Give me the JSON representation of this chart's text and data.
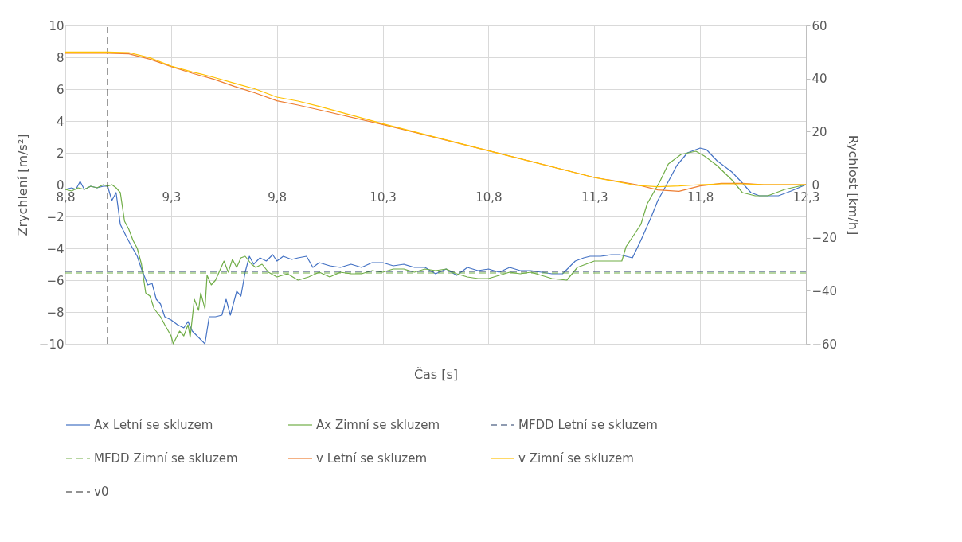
{
  "chart_data": {
    "type": "line",
    "xlabel": "Čas [s]",
    "ylabel": "Zrychlení [m/s²]",
    "y2label": "Rychlost [km/h]",
    "xlim": [
      8.8,
      12.3
    ],
    "xticks": [
      {
        "value": 8.8,
        "label": "8,8"
      },
      {
        "value": 9.3,
        "label": "9,3"
      },
      {
        "value": 9.8,
        "label": "9,8"
      },
      {
        "value": 10.3,
        "label": "10,3"
      },
      {
        "value": 10.8,
        "label": "10,8"
      },
      {
        "value": 11.3,
        "label": "11,3"
      },
      {
        "value": 11.8,
        "label": "11,8"
      },
      {
        "value": 12.3,
        "label": "12,3"
      }
    ],
    "ylim": [
      -10,
      10
    ],
    "yticks": [
      -10,
      -8,
      -6,
      -4,
      -2,
      0,
      2,
      4,
      6,
      8,
      10
    ],
    "y2lim": [
      -60,
      60
    ],
    "y2ticks": [
      -60,
      -40,
      -20,
      0,
      20,
      40,
      60
    ],
    "grid": true,
    "legend": "bottom",
    "series": [
      {
        "name": "Ax Letní se skluzem",
        "color": "#4472c4",
        "line_style": "solid",
        "x": [
          8.8,
          8.83,
          8.85,
          8.87,
          8.89,
          8.92,
          8.95,
          8.98,
          9.0,
          9.02,
          9.04,
          9.06,
          9.09,
          9.11,
          9.14,
          9.16,
          9.19,
          9.21,
          9.23,
          9.25,
          9.27,
          9.3,
          9.33,
          9.36,
          9.38,
          9.4,
          9.43,
          9.46,
          9.48,
          9.51,
          9.54,
          9.56,
          9.58,
          9.61,
          9.63,
          9.65,
          9.67,
          9.69,
          9.72,
          9.75,
          9.78,
          9.8,
          9.83,
          9.87,
          9.9,
          9.94,
          9.97,
          10.0,
          10.05,
          10.1,
          10.15,
          10.2,
          10.25,
          10.3,
          10.35,
          10.4,
          10.45,
          10.5,
          10.55,
          10.6,
          10.65,
          10.7,
          10.75,
          10.8,
          10.85,
          10.9,
          10.95,
          11.0,
          11.05,
          11.1,
          11.15,
          11.21,
          11.25,
          11.28,
          11.33,
          11.38,
          11.42,
          11.48,
          11.52,
          11.57,
          11.6,
          11.65,
          11.69,
          11.74,
          11.8,
          11.83,
          11.88,
          11.95,
          12.0,
          12.04,
          12.08,
          12.17,
          12.23,
          12.3
        ],
        "values": [
          -0.3,
          -0.2,
          -0.3,
          0.2,
          -0.3,
          -0.1,
          -0.2,
          -0.1,
          -0.1,
          -1.0,
          -0.5,
          -2.5,
          -3.3,
          -3.8,
          -4.5,
          -5.3,
          -6.3,
          -6.2,
          -7.2,
          -7.5,
          -8.3,
          -8.5,
          -8.8,
          -9.0,
          -8.6,
          -9.2,
          -9.6,
          -10.0,
          -8.3,
          -8.3,
          -8.2,
          -7.2,
          -8.2,
          -6.7,
          -7.0,
          -5.5,
          -4.5,
          -5.0,
          -4.6,
          -4.8,
          -4.4,
          -4.8,
          -4.5,
          -4.7,
          -4.6,
          -4.5,
          -5.2,
          -4.9,
          -5.1,
          -5.2,
          -5.0,
          -5.2,
          -4.9,
          -4.9,
          -5.1,
          -5.0,
          -5.2,
          -5.2,
          -5.6,
          -5.3,
          -5.7,
          -5.2,
          -5.4,
          -5.3,
          -5.5,
          -5.2,
          -5.4,
          -5.4,
          -5.5,
          -5.6,
          -5.6,
          -4.8,
          -4.6,
          -4.5,
          -4.5,
          -4.4,
          -4.4,
          -4.6,
          -3.5,
          -2.0,
          -1.0,
          0.2,
          1.2,
          2.0,
          2.3,
          2.2,
          1.5,
          0.8,
          0.1,
          -0.5,
          -0.7,
          -0.7,
          -0.4,
          0
        ]
      },
      {
        "name": "Ax Zimní se skluzem",
        "color": "#70ad47",
        "line_style": "solid",
        "x": [
          8.8,
          8.83,
          8.86,
          8.89,
          8.92,
          8.95,
          8.98,
          9.0,
          9.02,
          9.04,
          9.06,
          9.08,
          9.1,
          9.12,
          9.14,
          9.16,
          9.18,
          9.2,
          9.22,
          9.25,
          9.27,
          9.3,
          9.31,
          9.34,
          9.36,
          9.38,
          9.39,
          9.41,
          9.43,
          9.44,
          9.46,
          9.47,
          9.49,
          9.51,
          9.53,
          9.55,
          9.57,
          9.59,
          9.61,
          9.63,
          9.65,
          9.68,
          9.7,
          9.73,
          9.76,
          9.8,
          9.85,
          9.9,
          9.95,
          10.0,
          10.05,
          10.1,
          10.15,
          10.2,
          10.25,
          10.3,
          10.35,
          10.4,
          10.45,
          10.5,
          10.55,
          10.6,
          10.65,
          10.7,
          10.75,
          10.8,
          10.85,
          10.9,
          10.95,
          11.0,
          11.05,
          11.1,
          11.17,
          11.22,
          11.26,
          11.3,
          11.35,
          11.43,
          11.45,
          11.52,
          11.55,
          11.61,
          11.65,
          11.71,
          11.78,
          11.82,
          11.88,
          11.95,
          12.0,
          12.06,
          12.12,
          12.2,
          12.3
        ],
        "values": [
          -0.3,
          -0.4,
          -0.2,
          -0.3,
          -0.1,
          -0.2,
          0,
          -0.1,
          0,
          -0.2,
          -0.5,
          -2.3,
          -2.8,
          -3.5,
          -4.0,
          -5.0,
          -6.8,
          -7.0,
          -7.8,
          -8.3,
          -8.8,
          -9.5,
          -10.0,
          -9.2,
          -9.5,
          -8.8,
          -9.6,
          -7.2,
          -7.9,
          -6.8,
          -7.8,
          -5.7,
          -6.3,
          -6.0,
          -5.4,
          -4.8,
          -5.5,
          -4.7,
          -5.2,
          -4.6,
          -4.5,
          -5.0,
          -5.2,
          -5.0,
          -5.5,
          -5.8,
          -5.6,
          -6.0,
          -5.8,
          -5.5,
          -5.8,
          -5.5,
          -5.6,
          -5.6,
          -5.4,
          -5.5,
          -5.3,
          -5.3,
          -5.5,
          -5.3,
          -5.4,
          -5.3,
          -5.6,
          -5.8,
          -5.9,
          -5.9,
          -5.7,
          -5.5,
          -5.6,
          -5.5,
          -5.7,
          -5.9,
          -6.0,
          -5.2,
          -5.0,
          -4.8,
          -4.8,
          -4.8,
          -3.9,
          -2.5,
          -1.2,
          0.2,
          1.3,
          1.9,
          2.1,
          1.8,
          1.2,
          0.3,
          -0.5,
          -0.7,
          -0.7,
          -0.3,
          0
        ]
      },
      {
        "name": "MFDD Letní se skluzem",
        "color": "#203864",
        "line_style": "dashed",
        "x": [
          8.8,
          12.3
        ],
        "values": [
          -5.45,
          -5.45
        ]
      },
      {
        "name": "MFDD Zimní se skluzem",
        "color": "#70ad47",
        "line_style": "dashed",
        "x": [
          8.8,
          12.3
        ],
        "values": [
          -5.55,
          -5.55
        ]
      },
      {
        "name": "v Letní se skluzem",
        "color": "#ed7d31",
        "line_style": "solid",
        "axis": "y2",
        "x": [
          8.8,
          9.0,
          9.1,
          9.2,
          9.3,
          9.4,
          9.5,
          9.6,
          9.7,
          9.8,
          9.9,
          10.0,
          10.3,
          10.8,
          11.3,
          11.5,
          11.6,
          11.7,
          11.8,
          11.9,
          12.0,
          12.1,
          12.3
        ],
        "values": [
          49.5,
          49.5,
          49.3,
          47.3,
          44.5,
          42,
          39.8,
          37,
          34.5,
          31.6,
          30,
          28.2,
          22.7,
          12.8,
          2.7,
          0,
          -2,
          -2.5,
          -0.5,
          0.5,
          0.5,
          0,
          0
        ]
      },
      {
        "name": "v Zimní se skluzem",
        "color": "#ffc000",
        "line_style": "solid",
        "axis": "y2",
        "x": [
          8.8,
          9.0,
          9.1,
          9.2,
          9.3,
          9.4,
          9.5,
          9.6,
          9.7,
          9.8,
          9.9,
          10.0,
          10.3,
          10.8,
          11.3,
          11.5,
          11.6,
          11.7,
          11.8,
          11.9,
          12.0,
          12.1,
          12.3
        ],
        "values": [
          50,
          50,
          49.8,
          47.8,
          44.7,
          42.5,
          40.5,
          38.2,
          36,
          33,
          31.5,
          29.5,
          23,
          12.8,
          2.7,
          -0.3,
          -0.8,
          -0.5,
          0,
          0.3,
          0.3,
          0,
          0
        ]
      },
      {
        "name": "v0",
        "color": "#262626",
        "line_style": "dashed",
        "x": [
          9.0,
          9.0
        ],
        "values": [
          -10,
          10
        ]
      }
    ]
  }
}
